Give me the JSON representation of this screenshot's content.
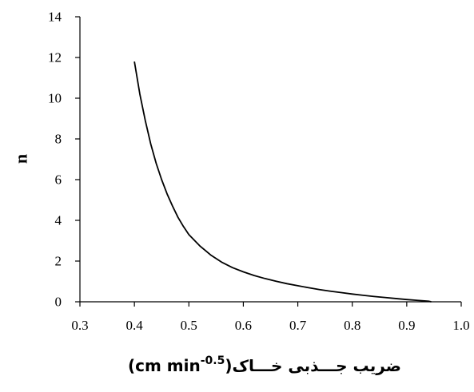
{
  "chart_data": {
    "type": "line",
    "xlabel_parts": {
      "persian": "ضریب جـــذبی خـــاک",
      "paren_open": "(",
      "unit": "cm min",
      "exponent": "-0.5",
      "paren_close": ")"
    },
    "ylabel": "n",
    "xlim": [
      0.3,
      1.0
    ],
    "ylim": [
      0,
      14
    ],
    "x_ticks": [
      "0.3",
      "0.4",
      "0.5",
      "0.6",
      "0.7",
      "0.8",
      "0.9",
      "1.0"
    ],
    "y_ticks": [
      "0",
      "2",
      "4",
      "6",
      "8",
      "10",
      "12",
      "14"
    ],
    "grid": false,
    "series": [
      {
        "color": "#000000",
        "x": [
          0.4,
          0.41,
          0.42,
          0.43,
          0.44,
          0.45,
          0.46,
          0.47,
          0.48,
          0.49,
          0.5,
          0.52,
          0.54,
          0.56,
          0.58,
          0.6,
          0.62,
          0.64,
          0.66,
          0.68,
          0.7,
          0.72,
          0.74,
          0.76,
          0.78,
          0.8,
          0.82,
          0.84,
          0.86,
          0.88,
          0.9,
          0.92,
          0.94,
          0.945
        ],
        "y": [
          11.8,
          10.2,
          8.9,
          7.75,
          6.8,
          6.0,
          5.3,
          4.7,
          4.15,
          3.7,
          3.3,
          2.75,
          2.3,
          1.95,
          1.68,
          1.47,
          1.29,
          1.14,
          1.01,
          0.89,
          0.79,
          0.69,
          0.6,
          0.52,
          0.45,
          0.38,
          0.32,
          0.26,
          0.21,
          0.16,
          0.11,
          0.07,
          0.03,
          0.0
        ]
      }
    ]
  }
}
